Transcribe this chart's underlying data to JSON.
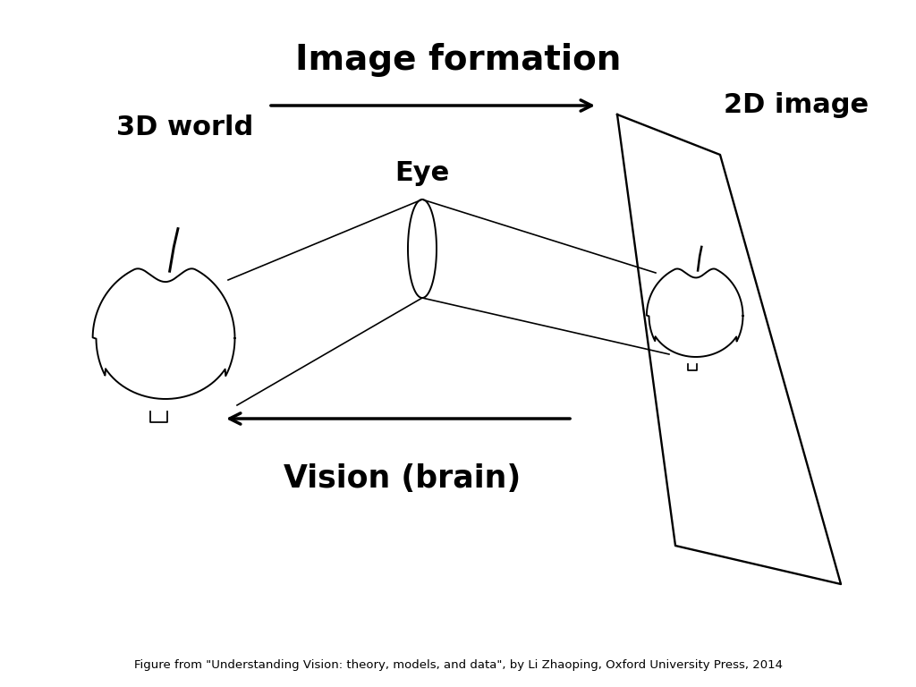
{
  "title": "Image formation",
  "label_3d_world": "3D world",
  "label_2d_image": "2D image",
  "label_eye": "Eye",
  "label_vision": "Vision (brain)",
  "footer": "Figure from \"Understanding Vision: theory, models, and data\", by Li Zhaoping, Oxford University Press, 2014",
  "bg_color": "#ffffff",
  "line_color": "#000000",
  "title_fontsize": 28,
  "label_fontsize": 22,
  "vision_fontsize": 25,
  "footer_fontsize": 9.5,
  "arrow_lw": 2.5,
  "line_lw": 1.4
}
